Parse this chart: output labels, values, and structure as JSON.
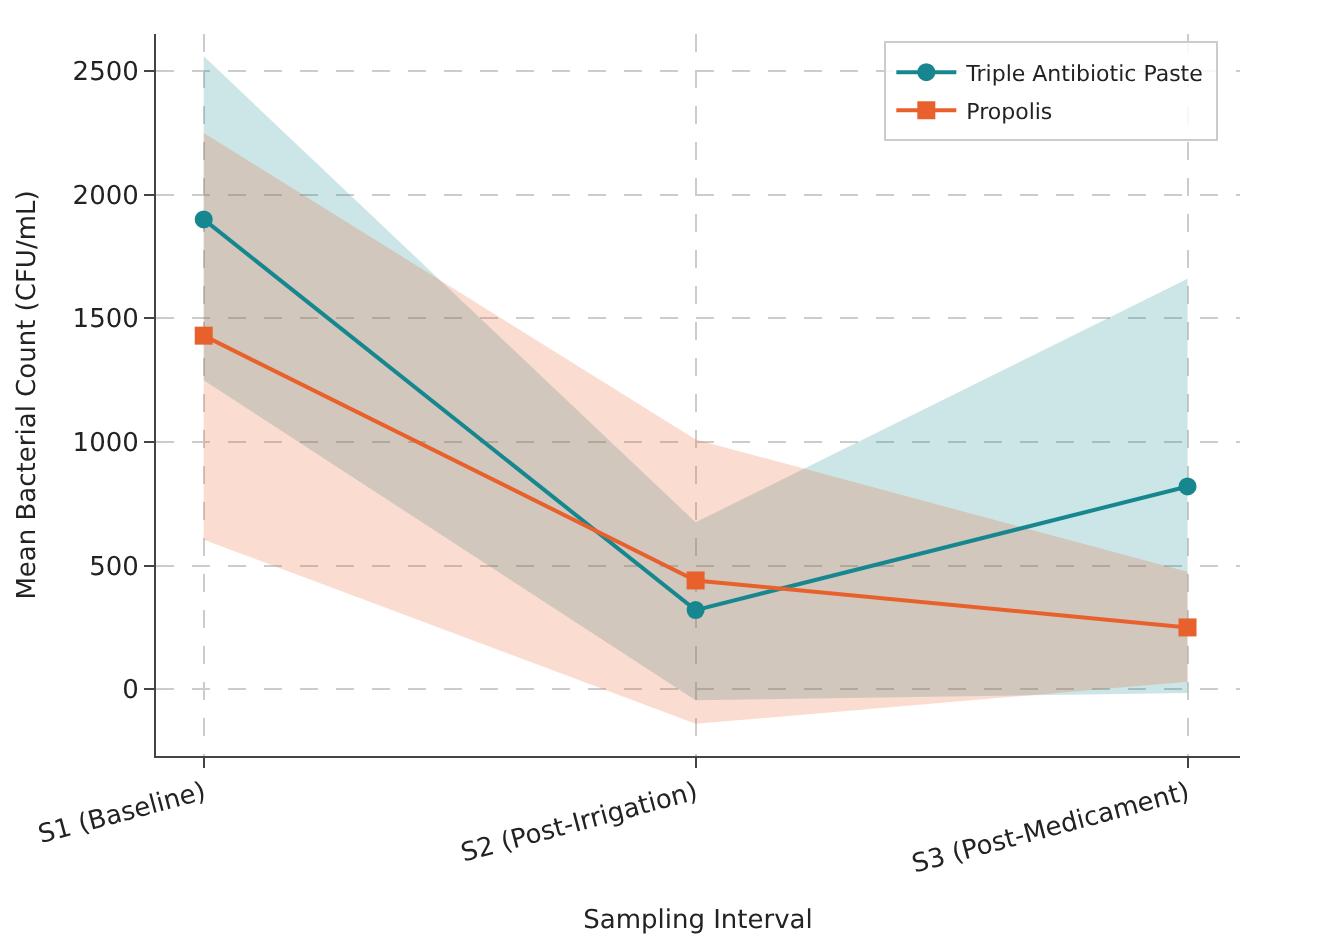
{
  "chart_data": {
    "type": "line",
    "xlabel": "Sampling Interval",
    "ylabel": "Mean Bacterial Count (CFU/mL)",
    "categories": [
      "S1 (Baseline)",
      "S2 (Post-Irrigation)",
      "S3 (Post-Medicament)"
    ],
    "series": [
      {
        "name": "Triple Antibiotic Paste",
        "color": "#17878f",
        "values": [
          1900,
          320,
          820
        ],
        "lower": [
          1250,
          -45,
          -15
        ],
        "upper": [
          2560,
          675,
          1660
        ]
      },
      {
        "name": "Propolis",
        "color": "#e8612c",
        "marker": "square",
        "values": [
          1430,
          440,
          250
        ],
        "lower": [
          605,
          -140,
          30
        ],
        "upper": [
          2250,
          1010,
          475
        ]
      }
    ],
    "ylim": [
      -270,
      2650
    ],
    "yticks": [
      0,
      500,
      1000,
      1500,
      2000,
      2500
    ],
    "grid": true,
    "legend": "top right",
    "line_style": "solid"
  }
}
